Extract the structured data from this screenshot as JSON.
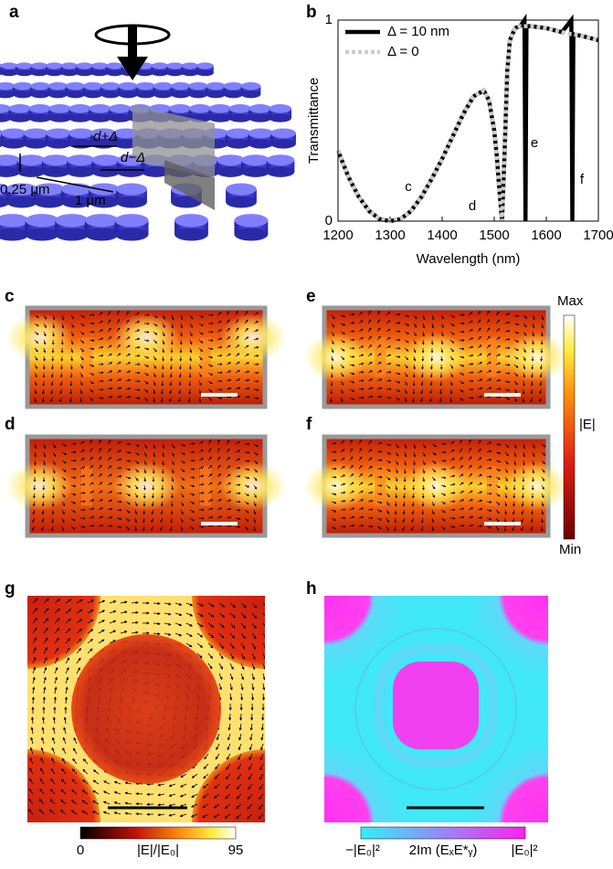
{
  "panel_a": {
    "label": "a",
    "dimension_labels": [
      "d+Δ",
      "d−Δ",
      "0.25 μm",
      "1 μm"
    ]
  },
  "chart_data": {
    "type": "line",
    "panel_label": "b",
    "x_label": "Wavelength (nm)",
    "y_label": "Transmittance",
    "x": [
      1200,
      1220,
      1240,
      1260,
      1280,
      1300,
      1320,
      1340,
      1360,
      1380,
      1400,
      1420,
      1440,
      1460,
      1480,
      1490,
      1500,
      1505,
      1510,
      1515,
      1520,
      1525,
      1530,
      1540,
      1550,
      1558,
      1560,
      1562,
      1570,
      1600,
      1630,
      1648,
      1650,
      1652,
      1670,
      1700
    ],
    "series": [
      {
        "name": "Δ = 10 nm",
        "color": "#000000",
        "line_style": "solid",
        "values": [
          0.35,
          0.22,
          0.12,
          0.05,
          0.01,
          0,
          0.01,
          0.05,
          0.12,
          0.21,
          0.31,
          0.42,
          0.53,
          0.62,
          0.65,
          0.6,
          0.45,
          0.32,
          0.15,
          0,
          0.35,
          0.75,
          0.9,
          0.96,
          0.97,
          1,
          0,
          0.97,
          0.97,
          0.96,
          0.94,
          1,
          0,
          0.93,
          0.92,
          0.9
        ]
      },
      {
        "name": "Δ = 0",
        "color": "#cccccc",
        "line_style": "dotted",
        "values": [
          0.35,
          0.22,
          0.12,
          0.05,
          0.01,
          0,
          0.01,
          0.05,
          0.12,
          0.21,
          0.31,
          0.42,
          0.53,
          0.62,
          0.65,
          0.6,
          0.45,
          0.32,
          0.15,
          0,
          0.35,
          0.75,
          0.9,
          0.96,
          0.97,
          0.97,
          0.97,
          0.97,
          0.97,
          0.96,
          0.94,
          0.93,
          0.93,
          0.93,
          0.92,
          0.9
        ]
      }
    ],
    "xlim": [
      1200,
      1700
    ],
    "xticks": [
      1200,
      1300,
      1400,
      1500,
      1600,
      1700
    ],
    "ylim": [
      0,
      1
    ],
    "yticks": [
      0,
      1
    ],
    "legend": "top-left",
    "annotations": [
      "c",
      "d",
      "e",
      "f"
    ]
  },
  "field_maps": [
    {
      "label": "c"
    },
    {
      "label": "d"
    },
    {
      "label": "e"
    },
    {
      "label": "f"
    }
  ],
  "field_colorbar": {
    "max_label": "Max",
    "quantity": "|E|",
    "min_label": "Min"
  },
  "panel_g": {
    "label": "g",
    "colorbar_ticks": [
      0,
      95
    ],
    "quantity": "|E|/|E₀|"
  },
  "panel_h": {
    "label": "h",
    "min_label": "−|E₀|²",
    "quantity": "2Im (EₓE*ᵧ)",
    "max_label": "|E₀|²"
  }
}
